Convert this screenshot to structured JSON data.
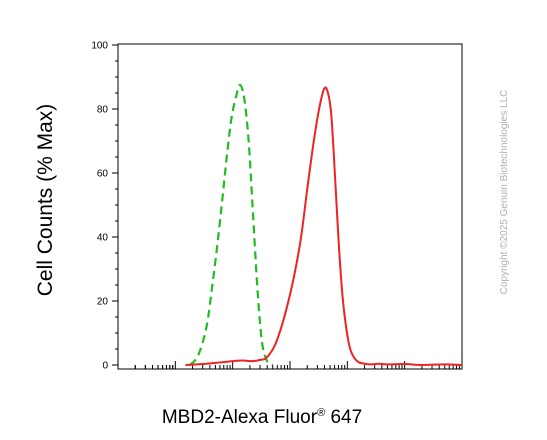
{
  "chart_data": {
    "type": "line",
    "xlabel_main": "MBD2-Alexa Fluor",
    "xlabel_sup": "®",
    "xlabel_tail": " 647",
    "ylabel": "Cell Counts (% Max)",
    "ylim": [
      0,
      100
    ],
    "yticks": [
      0,
      20,
      40,
      60,
      80,
      100
    ],
    "ytick_labels": [
      "0",
      "20",
      "40",
      "60",
      "80",
      "100"
    ],
    "xscale": "log",
    "xlim": [
      0.1,
      100000
    ],
    "xtick_labels": [],
    "grid": false,
    "legend": "none",
    "series": [
      {
        "color": "#22bb22",
        "style": "dashed",
        "x": [
          1.8,
          2.5,
          3.5,
          4.5,
          5.6,
          6.8,
          8.0,
          9.5,
          11.5,
          13.5,
          16,
          19,
          22.5,
          27,
          32,
          38,
          45,
          50
        ],
        "y": [
          0,
          3,
          12,
          26,
          40,
          54,
          66,
          77,
          84,
          87.5,
          83,
          70,
          48,
          24,
          8,
          2,
          0.3,
          0
        ]
      },
      {
        "color": "#ee2222",
        "style": "solid",
        "x": [
          1.5,
          3,
          6,
          10,
          15,
          22,
          30,
          40,
          60,
          100,
          150,
          200,
          260,
          330,
          400,
          460,
          520,
          580,
          640,
          720,
          820,
          950,
          1120,
          1350,
          1600,
          2000,
          2600,
          3500,
          5000,
          10000,
          20000,
          50000,
          100000
        ],
        "y": [
          0,
          0.3,
          0.8,
          1.2,
          1.4,
          1.2,
          1.6,
          2.5,
          8,
          22,
          38,
          55,
          70,
          81,
          86.5,
          85,
          79,
          66,
          52,
          36,
          22,
          12,
          5,
          2,
          0.8,
          0.4,
          0.2,
          0.4,
          0.2,
          0.3,
          0,
          0.2,
          0
        ]
      }
    ]
  },
  "watermark": "Copyright ©2025 Genuin Biotechnologies LLC"
}
